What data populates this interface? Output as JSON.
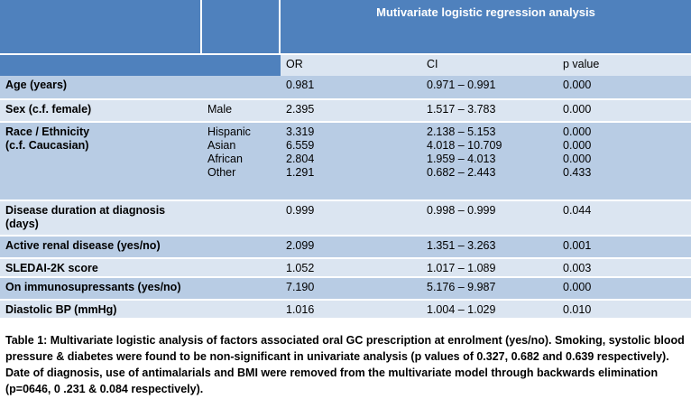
{
  "header": {
    "span_title": "Mutivariate logistic regression analysis",
    "col_or": "OR",
    "col_ci": "CI",
    "col_p": "p value"
  },
  "rows": [
    {
      "label": [
        "Age (years)"
      ],
      "category": [
        ""
      ],
      "or": [
        "0.981"
      ],
      "ci": [
        "0.971 – 0.991"
      ],
      "p": [
        "0.000"
      ]
    },
    {
      "label": [
        "Sex (c.f. female)"
      ],
      "category": [
        "Male"
      ],
      "or": [
        "2.395"
      ],
      "ci": [
        "1.517 – 3.783"
      ],
      "p": [
        "0.000"
      ]
    },
    {
      "label": [
        "Race / Ethnicity",
        "(c.f. Caucasian)"
      ],
      "category": [
        "Hispanic",
        "Asian",
        "African",
        "Other"
      ],
      "or": [
        "3.319",
        "6.559",
        "2.804",
        "1.291"
      ],
      "ci": [
        "2.138 – 5.153",
        "4.018 – 10.709",
        "1.959 – 4.013",
        "0.682 – 2.443"
      ],
      "p": [
        "0.000",
        "0.000",
        "0.000",
        "0.433"
      ]
    },
    {
      "label": [
        "Disease duration at diagnosis",
        "(days)"
      ],
      "category": [
        ""
      ],
      "or": [
        "0.999"
      ],
      "ci": [
        "0.998 – 0.999"
      ],
      "p": [
        "0.044"
      ]
    },
    {
      "label": [
        "Active renal disease (yes/no)"
      ],
      "category": [
        ""
      ],
      "or": [
        "2.099"
      ],
      "ci": [
        "1.351 – 3.263"
      ],
      "p": [
        "0.001"
      ]
    },
    {
      "label": [
        "SLEDAI-2K score"
      ],
      "category": [
        ""
      ],
      "or": [
        "1.052"
      ],
      "ci": [
        "1.017 – 1.089"
      ],
      "p": [
        "0.003"
      ]
    },
    {
      "label": [
        "On immunosupressants (yes/no)"
      ],
      "category": [
        ""
      ],
      "or": [
        "7.190"
      ],
      "ci": [
        "5.176 – 9.987"
      ],
      "p": [
        "0.000"
      ]
    },
    {
      "label": [
        "Diastolic BP (mmHg)"
      ],
      "category": [
        ""
      ],
      "or": [
        "1.016"
      ],
      "ci": [
        "1.004 – 1.029"
      ],
      "p": [
        "0.010"
      ]
    }
  ],
  "caption": "Table 1:  Multivariate logistic analysis of factors associated oral GC prescription at enrolment (yes/no).  Smoking, systolic blood pressure & diabetes were found to be non-significant in univariate analysis (p values of 0.327,  0.682  and 0.639 respectively).  Date of diagnosis, use of antimalarials and BMI were removed  from the multivariate model through backwards elimination (p=0646, 0 .231  & 0.084 respectively)."
}
